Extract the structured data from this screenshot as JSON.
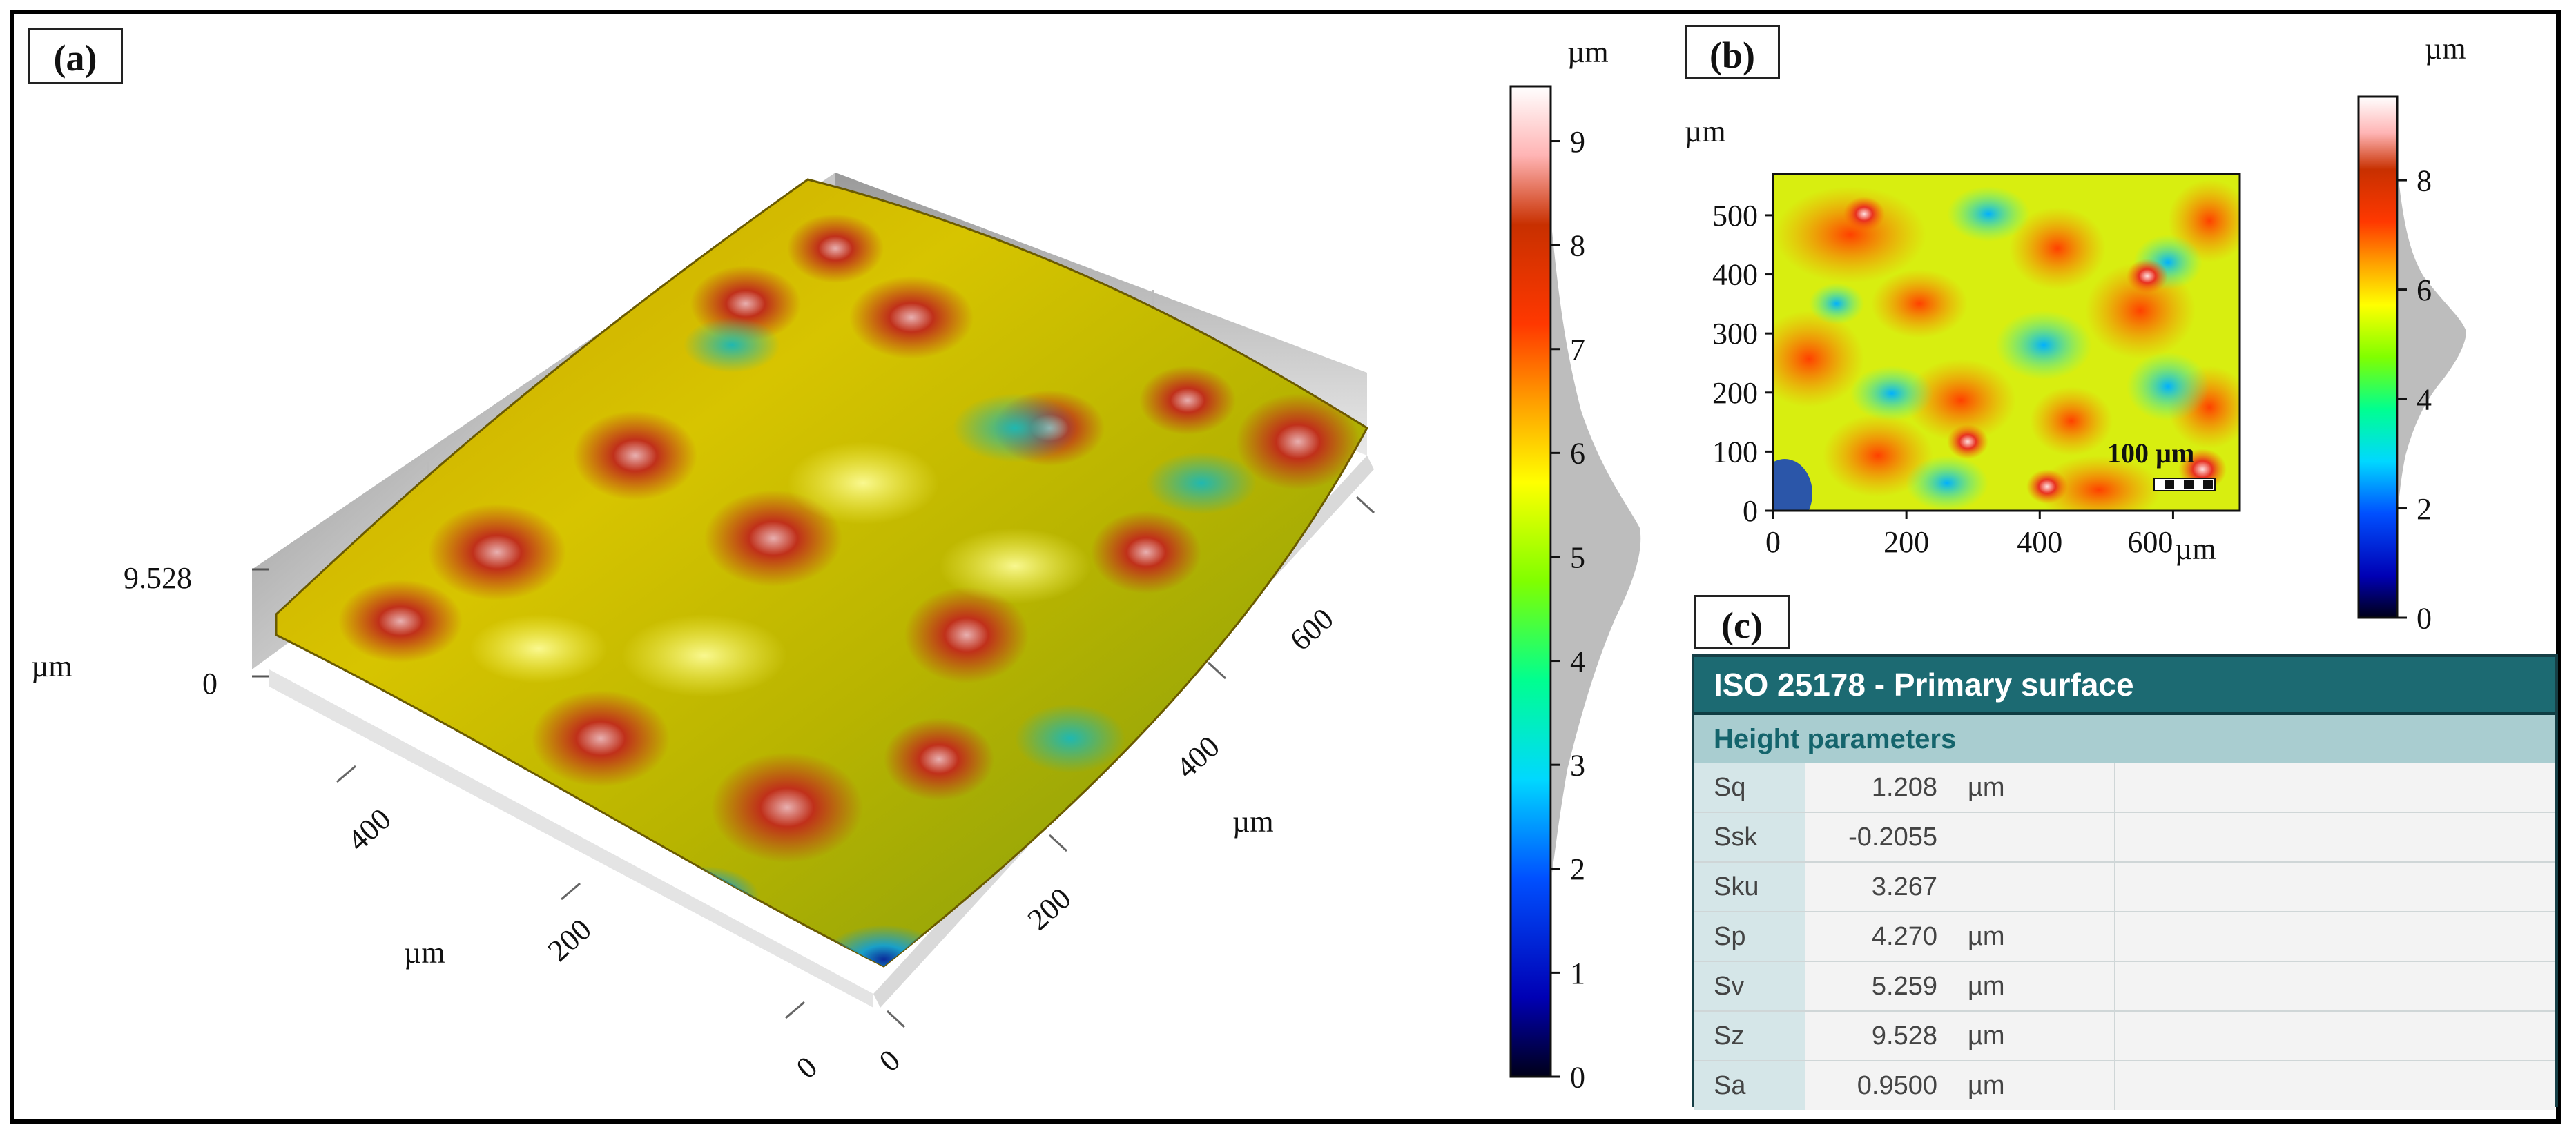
{
  "panels": {
    "a": {
      "label": "(a)",
      "z_max_label": "9.528",
      "z_unit": "µm",
      "z_zero": "0",
      "left_axis": {
        "ticks": [
          "0",
          "200",
          "400"
        ],
        "unit": "µm"
      },
      "right_axis": {
        "ticks": [
          "0",
          "200",
          "400",
          "600"
        ],
        "unit": "µm"
      }
    },
    "colorbar_a": {
      "unit": "µm",
      "ticks": [
        "0",
        "1",
        "2",
        "3",
        "4",
        "5",
        "6",
        "7",
        "8",
        "9"
      ],
      "range": [
        0,
        9.528
      ]
    },
    "b": {
      "label": "(b)",
      "y_unit": "µm",
      "y_ticks": [
        "0",
        "100",
        "200",
        "300",
        "400",
        "500"
      ],
      "x_ticks": [
        "0",
        "200",
        "400",
        "600"
      ],
      "x_unit": "µm",
      "scale_bar": "100 µm"
    },
    "colorbar_b": {
      "unit": "µm",
      "ticks": [
        "0",
        "2",
        "4",
        "6",
        "8"
      ],
      "range": [
        0,
        9.528
      ]
    },
    "c": {
      "label": "(c)",
      "title": "ISO 25178 - Primary surface",
      "section": "Height parameters",
      "rows": [
        {
          "name": "Sq",
          "value": "1.208",
          "unit": "µm"
        },
        {
          "name": "Ssk",
          "value": "-0.2055",
          "unit": ""
        },
        {
          "name": "Sku",
          "value": "3.267",
          "unit": ""
        },
        {
          "name": "Sp",
          "value": "4.270",
          "unit": "µm"
        },
        {
          "name": "Sv",
          "value": "5.259",
          "unit": "µm"
        },
        {
          "name": "Sz",
          "value": "9.528",
          "unit": "µm"
        },
        {
          "name": "Sa",
          "value": "0.9500",
          "unit": "µm"
        }
      ]
    }
  },
  "colors": {
    "colormap": [
      "#000020",
      "#0000c8",
      "#0060ff",
      "#00e0ff",
      "#00ff80",
      "#80ff00",
      "#ffff00",
      "#ffa000",
      "#ff3000",
      "#c83000",
      "#ffb0b0",
      "#ffffff"
    ],
    "table_header": "#1c6a72",
    "table_section": "#a9cdd0"
  }
}
